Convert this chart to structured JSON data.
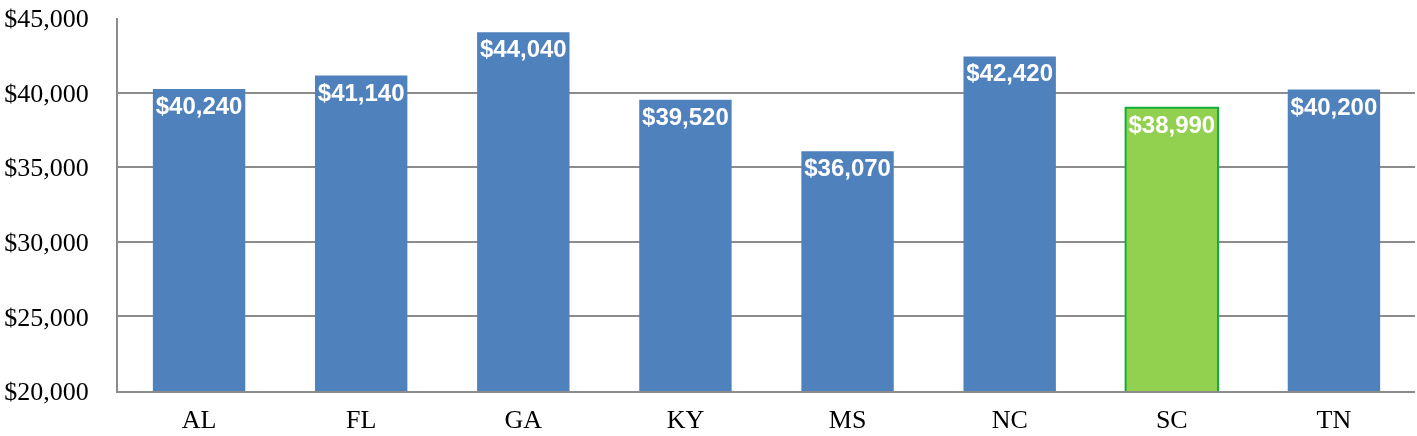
{
  "chart_data": {
    "type": "bar",
    "categories": [
      "AL",
      "FL",
      "GA",
      "KY",
      "MS",
      "NC",
      "SC",
      "TN"
    ],
    "values": [
      40240,
      41140,
      44040,
      39520,
      36070,
      42420,
      38990,
      40200
    ],
    "colors": [
      "#4f81bd",
      "#4f81bd",
      "#4f81bd",
      "#4f81bd",
      "#4f81bd",
      "#4f81bd",
      "#92d050",
      "#4f81bd"
    ],
    "value_labels": [
      "$40,240",
      "$41,140",
      "$44,040",
      "$39,520",
      "$36,070",
      "$42,420",
      "$38,990",
      "$40,200"
    ],
    "ylim": [
      20000,
      45000
    ],
    "yticks": [
      {
        "value": 20000,
        "label": "$20,000"
      },
      {
        "value": 25000,
        "label": "$25,000"
      },
      {
        "value": 30000,
        "label": "$30,000"
      },
      {
        "value": 35000,
        "label": "$35,000"
      },
      {
        "value": 40000,
        "label": "$40,000"
      },
      {
        "value": 45000,
        "label": "$45,000"
      }
    ],
    "grid": "y"
  }
}
